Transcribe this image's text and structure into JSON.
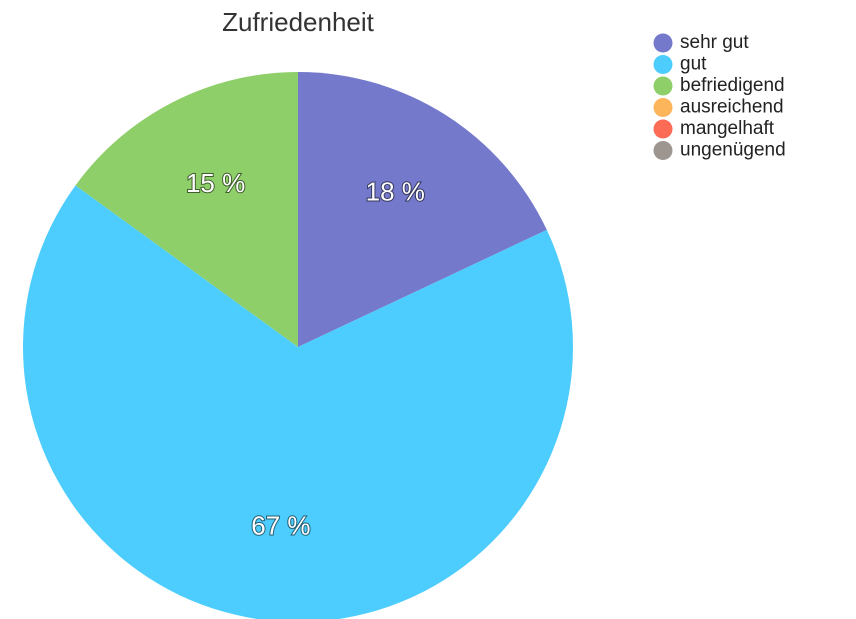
{
  "chart_data": {
    "type": "pie",
    "title": "Zufriedenheit",
    "categories": [
      "sehr gut",
      "gut",
      "befriedigend",
      "ausreichend",
      "mangelhaft",
      "ungenügend"
    ],
    "values": [
      18,
      67,
      15,
      0,
      0,
      0
    ],
    "value_labels": [
      "18 %",
      "67 %",
      "15 %",
      null,
      null,
      null
    ],
    "colors": [
      "#7479cb",
      "#4dcdfd",
      "#8ecf69",
      "#fdb55b",
      "#fb6b55",
      "#9d9690"
    ],
    "legend": "top-right"
  }
}
